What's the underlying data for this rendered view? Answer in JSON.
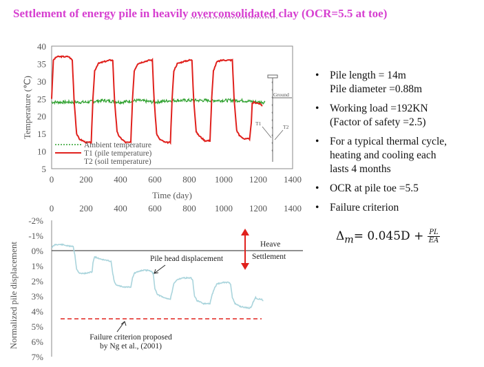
{
  "title": {
    "pre": "Settlement  of energy pile in heavily ",
    "underlined": "overconsolidated ",
    "post": "clay (OCR=5.5 at toe)"
  },
  "colors": {
    "title": "#d63fd0",
    "ambient": "#2ca02c",
    "t1": "#e0201c",
    "displacement": "#a9d4dc",
    "criterion": "#e0201c",
    "arrow": "#e0201c"
  },
  "bullets": [
    "Pile length = 14m",
    "Pile diameter =0.88m",
    "Working load =192KN",
    "(Factor of safety =2.5)",
    "For a typical thermal cycle,",
    "heating and cooling each",
    "lasts 4 months",
    "OCR at pile toe =5.5",
    "Failure criterion"
  ],
  "bullet_dot": "•",
  "formula": {
    "lhs": "Δ",
    "sub": "m",
    "rhs": "= 0.045D + ",
    "num": "PL",
    "den": "EA"
  },
  "chart_data": [
    {
      "type": "line",
      "xlabel": "Time (day)",
      "ylabel": "Temperature (℃)",
      "xlim": [
        0,
        1400
      ],
      "ylim": [
        5,
        40
      ],
      "xticks": [
        "0",
        "200",
        "400",
        "600",
        "800",
        "1000",
        "1200",
        "1400"
      ],
      "yticks": [
        "5",
        "10",
        "15",
        "20",
        "25",
        "30",
        "35",
        "40"
      ],
      "legend": [
        "Ambient temperature",
        "T1 (pile temperature)",
        "T2 (soil temperature)"
      ],
      "legend_position": "bottom-left",
      "inset_labels": [
        "Ground",
        "T1",
        "T2"
      ],
      "series": [
        {
          "name": "T1 (pile temperature)",
          "x": [
            0,
            10,
            30,
            60,
            100,
            120,
            130,
            145,
            160,
            200,
            230,
            240,
            250,
            270,
            300,
            340,
            355,
            365,
            380,
            395,
            430,
            460,
            470,
            480,
            500,
            530,
            570,
            585,
            595,
            610,
            625,
            660,
            690,
            700,
            710,
            730,
            760,
            800,
            815,
            825,
            840,
            855,
            890,
            920,
            930,
            940,
            960,
            990,
            1040,
            1050,
            1060,
            1075,
            1090,
            1120,
            1150,
            1160,
            1165,
            1175,
            1190,
            1210,
            1225
          ],
          "y": [
            25,
            36,
            37,
            37,
            37,
            36,
            25,
            15,
            13.5,
            12.5,
            12.5,
            25,
            33,
            35,
            35.5,
            36,
            36,
            25,
            15.5,
            14,
            12.5,
            12.5,
            25,
            33,
            35,
            35.5,
            36,
            36,
            25,
            15,
            13.5,
            12.5,
            12.5,
            25,
            33,
            35,
            35.5,
            36,
            36,
            25,
            15.5,
            14.5,
            13,
            13,
            25,
            33,
            35.5,
            36,
            36,
            36,
            25,
            16,
            14.5,
            13.5,
            13.5,
            18,
            23.5,
            24,
            23.8,
            23.5,
            23
          ]
        },
        {
          "name": "Ambient temperature",
          "x": [
            0,
            100,
            200,
            300,
            400,
            500,
            600,
            700,
            800,
            900,
            1000,
            1100,
            1200,
            1240
          ],
          "y": [
            24,
            24,
            24,
            24.5,
            24,
            24.5,
            24,
            24.5,
            24.5,
            24.5,
            24.5,
            24.5,
            24,
            24
          ]
        }
      ]
    },
    {
      "type": "line",
      "xlabel": "",
      "ylabel": "Normalized pile displacement",
      "xlim": [
        0,
        1400
      ],
      "ylim": [
        -2,
        7
      ],
      "xticks": [
        "0",
        "200",
        "400",
        "600",
        "800",
        "1000",
        "1200",
        "1400"
      ],
      "yticks": [
        "-2%",
        "-1%",
        "0%",
        "1%",
        "2%",
        "3%",
        "4%",
        "5%",
        "6%",
        "7%"
      ],
      "annotations": [
        "Pile head displacement",
        "Heave",
        "Settlement",
        "Failure criterion proposed",
        "by Ng et al., (2001)"
      ],
      "failure_criterion": 4.5,
      "series": [
        {
          "name": "Pile head displacement",
          "x": [
            0,
            20,
            60,
            100,
            125,
            135,
            145,
            160,
            200,
            235,
            240,
            250,
            270,
            300,
            345,
            355,
            365,
            380,
            420,
            460,
            470,
            480,
            500,
            525,
            570,
            590,
            600,
            615,
            650,
            690,
            700,
            710,
            730,
            760,
            810,
            820,
            830,
            845,
            880,
            920,
            930,
            945,
            960,
            1000,
            1030,
            1040,
            1050,
            1065,
            1100,
            1150,
            1160,
            1170,
            1185,
            1200,
            1220,
            1230
          ],
          "y": [
            -0.2,
            -0.4,
            -0.4,
            -0.3,
            -0.3,
            0.3,
            1.2,
            1.5,
            1.5,
            1.4,
            0.8,
            0.4,
            0.5,
            0.6,
            0.7,
            1.5,
            2.1,
            2.3,
            2.4,
            2.4,
            1.8,
            1.5,
            1.4,
            1.3,
            1.3,
            1.5,
            2.5,
            2.9,
            3.1,
            3.2,
            2.7,
            2.2,
            1.9,
            1.8,
            1.8,
            2.0,
            3.0,
            3.3,
            3.5,
            3.5,
            3.0,
            2.5,
            2.2,
            2.1,
            2.1,
            2.2,
            3.1,
            3.5,
            3.7,
            3.8,
            3.7,
            3.4,
            3.1,
            3.2,
            3.2,
            3.3
          ]
        }
      ]
    }
  ]
}
